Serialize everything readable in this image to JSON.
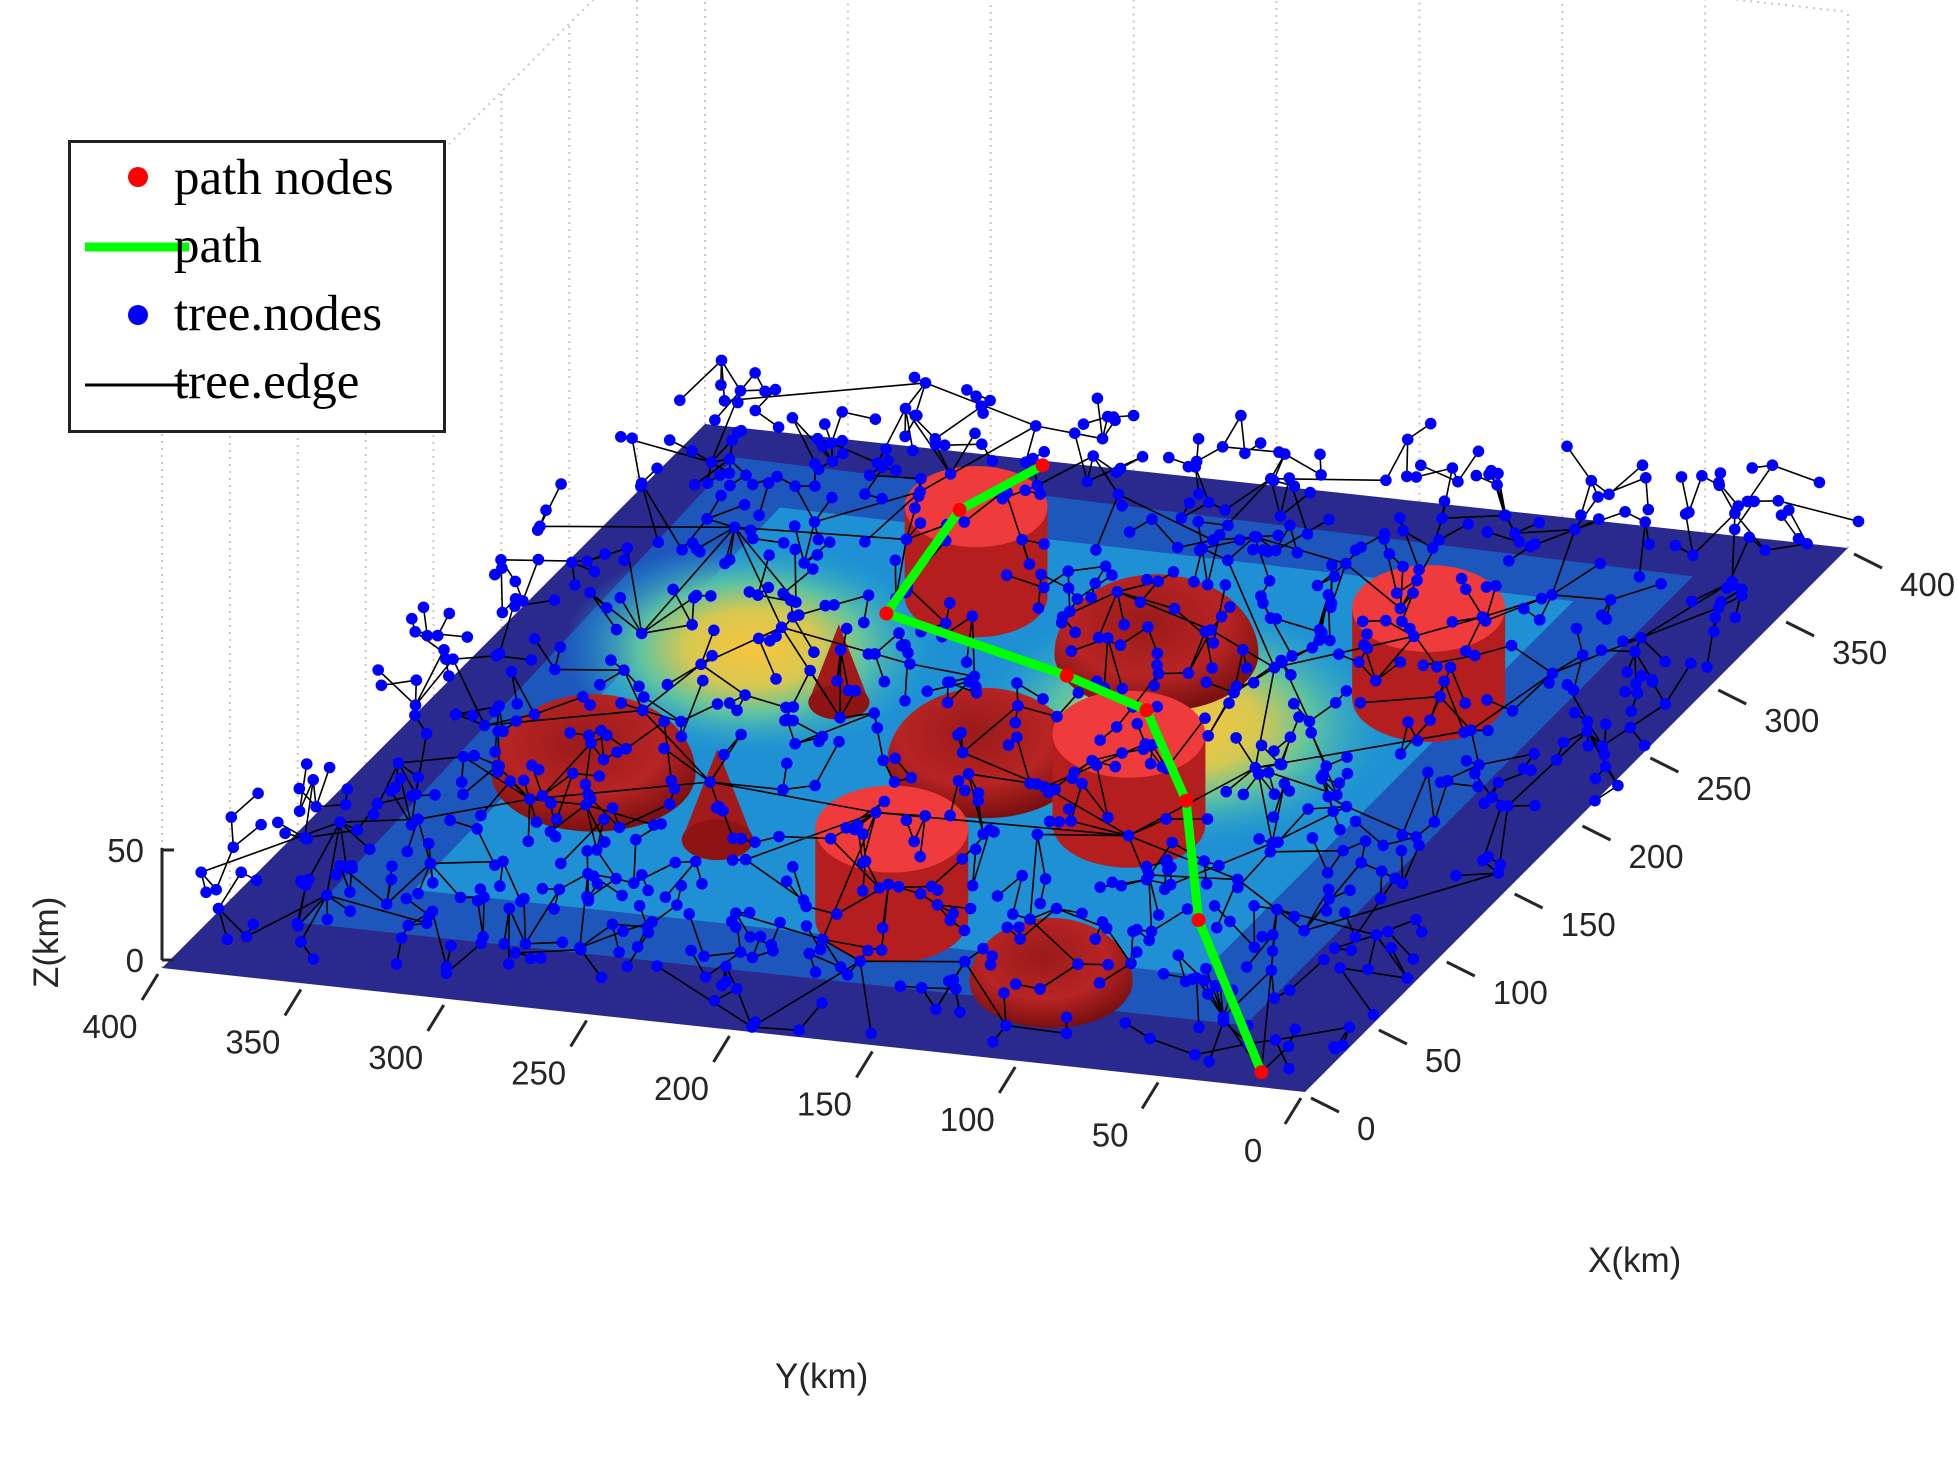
{
  "chart_data": {
    "type": "scatter",
    "subtype": "3d-surface-with-rrt-tree",
    "xlabel": "X(km)",
    "ylabel": "Y(km)",
    "zlabel": "Z(km)",
    "xlim": [
      0,
      400
    ],
    "ylim": [
      0,
      400
    ],
    "zlim": [
      0,
      50
    ],
    "x_ticks": [
      "0",
      "50",
      "100",
      "150",
      "200",
      "250",
      "300",
      "350",
      "400"
    ],
    "y_ticks": [
      "0",
      "50",
      "100",
      "150",
      "200",
      "250",
      "300",
      "350",
      "400"
    ],
    "z_ticks": [
      "0",
      "50"
    ],
    "grid": true,
    "legend_position": "top-left",
    "colors": {
      "path_nodes": "#ff0000",
      "path": "#00ff00",
      "tree_nodes": "#0000ff",
      "tree_edge": "#000000",
      "obstacle": "#e01818",
      "terrain_low": "#2a2a8e",
      "terrain_mid": "#1e9fd8",
      "terrain_high": "#f5c242"
    },
    "legend": [
      {
        "label": "path nodes",
        "marker": "dot",
        "color": "#ff0000"
      },
      {
        "label": "path",
        "marker": "thick-line",
        "color": "#00ff00"
      },
      {
        "label": "tree.nodes",
        "marker": "dot",
        "color": "#0000ff"
      },
      {
        "label": "tree.edge",
        "marker": "thin-line",
        "color": "#000000"
      }
    ],
    "path": [
      {
        "x": 10,
        "y": 20,
        "z": 0
      },
      {
        "x": 90,
        "y": 80,
        "z": 15
      },
      {
        "x": 165,
        "y": 120,
        "z": 18
      },
      {
        "x": 220,
        "y": 160,
        "z": 20
      },
      {
        "x": 235,
        "y": 195,
        "z": 22
      },
      {
        "x": 260,
        "y": 270,
        "z": 25
      },
      {
        "x": 335,
        "y": 280,
        "z": 24
      },
      {
        "x": 375,
        "y": 270,
        "z": 20
      }
    ],
    "obstacles": [
      {
        "shape": "cylinder",
        "x": 305,
        "y": 260,
        "r": 28
      },
      {
        "shape": "dome",
        "x": 280,
        "y": 185,
        "r": 40
      },
      {
        "shape": "cylinder",
        "x": 270,
        "y": 85,
        "r": 30
      },
      {
        "shape": "cone",
        "x": 225,
        "y": 270,
        "r": 12
      },
      {
        "shape": "dome",
        "x": 195,
        "y": 205,
        "r": 38
      },
      {
        "shape": "cylinder",
        "x": 165,
        "y": 140,
        "r": 30
      },
      {
        "shape": "dome",
        "x": 160,
        "y": 325,
        "r": 40
      },
      {
        "shape": "cone",
        "x": 125,
        "y": 265,
        "r": 14
      },
      {
        "shape": "cylinder",
        "x": 85,
        "y": 185,
        "r": 30
      },
      {
        "shape": "dome",
        "x": 55,
        "y": 115,
        "r": 32
      }
    ],
    "hills": [
      {
        "x": 235,
        "y": 305,
        "r": 70
      },
      {
        "x": 215,
        "y": 145,
        "r": 80
      }
    ]
  }
}
